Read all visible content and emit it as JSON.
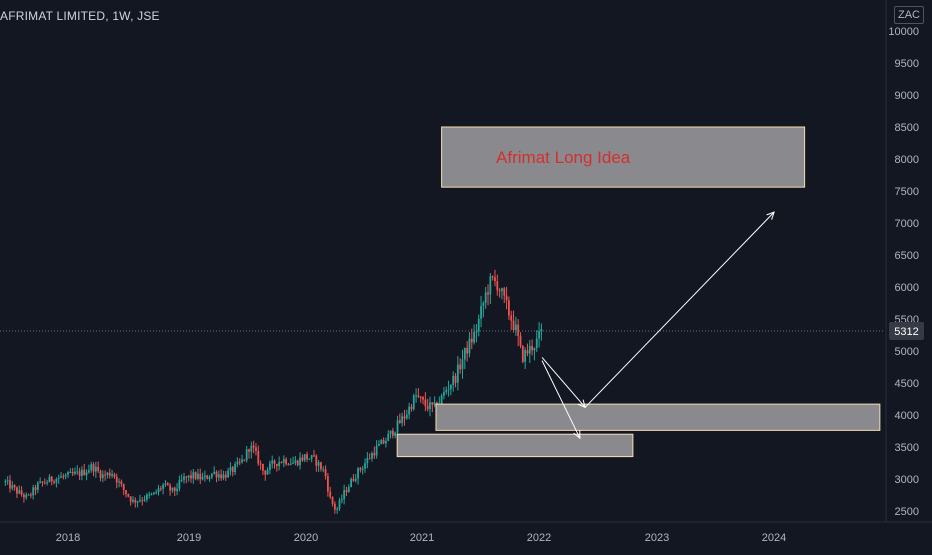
{
  "header": {
    "symbol": "AFRIMAT LIMITED",
    "interval": "1W",
    "exchange": "JSE",
    "currency": "ZAC"
  },
  "colors": {
    "background": "#131722",
    "up": "#26a69a",
    "down": "#ef5350",
    "box_fill": "#8a8a8e",
    "box_border": "#f5deb3",
    "annotation_text": "#d32f2f",
    "arrow": "#ffffff",
    "price_line": "#5d6d7e",
    "last_price_bg": "#363a45"
  },
  "chart_data": {
    "type": "candlestick",
    "title": "AFRIMAT LIMITED, 1W, JSE",
    "y_axis": {
      "ticks": [
        10000,
        9500,
        9000,
        8500,
        8000,
        7500,
        7000,
        6500,
        6000,
        5500,
        5000,
        4500,
        4000,
        3500,
        3000,
        2500
      ],
      "range": [
        2400,
        10200
      ],
      "unit": "ZAC"
    },
    "x_axis": {
      "ticks": [
        "2018",
        "2019",
        "2020",
        "2021",
        "2022",
        "2023",
        "2024"
      ],
      "range": [
        "2017-06-26",
        "2024-10-21"
      ]
    },
    "last_price": 5312,
    "price_path": [
      [
        "2017-06-26",
        2950
      ],
      [
        "2017-08-01",
        2800
      ],
      [
        "2017-09-01",
        2700
      ],
      [
        "2017-10-01",
        2900
      ],
      [
        "2017-11-15",
        3000
      ],
      [
        "2018-01-01",
        3050
      ],
      [
        "2018-02-15",
        3100
      ],
      [
        "2018-03-15",
        3200
      ],
      [
        "2018-04-15",
        3050
      ],
      [
        "2018-05-15",
        3100
      ],
      [
        "2018-06-15",
        2850
      ],
      [
        "2018-07-15",
        2650
      ],
      [
        "2018-08-15",
        2700
      ],
      [
        "2018-09-15",
        2750
      ],
      [
        "2018-10-15",
        2900
      ],
      [
        "2018-11-15",
        2800
      ],
      [
        "2018-12-15",
        3000
      ],
      [
        "2019-01-15",
        3050
      ],
      [
        "2019-02-15",
        3000
      ],
      [
        "2019-03-15",
        3100
      ],
      [
        "2019-04-15",
        3050
      ],
      [
        "2019-05-15",
        3150
      ],
      [
        "2019-06-15",
        3300
      ],
      [
        "2019-07-01",
        3500
      ],
      [
        "2019-07-15",
        3450
      ],
      [
        "2019-08-15",
        3100
      ],
      [
        "2019-09-15",
        3250
      ],
      [
        "2019-10-15",
        3300
      ],
      [
        "2019-11-15",
        3250
      ],
      [
        "2019-12-15",
        3350
      ],
      [
        "2020-01-15",
        3300
      ],
      [
        "2020-02-15",
        3100
      ],
      [
        "2020-03-01",
        2700
      ],
      [
        "2020-03-20",
        2500
      ],
      [
        "2020-04-15",
        2800
      ],
      [
        "2020-05-15",
        3050
      ],
      [
        "2020-06-15",
        3250
      ],
      [
        "2020-07-15",
        3450
      ],
      [
        "2020-08-15",
        3600
      ],
      [
        "2020-09-15",
        3800
      ],
      [
        "2020-10-15",
        4000
      ],
      [
        "2020-11-15",
        4300
      ],
      [
        "2020-12-15",
        4150
      ],
      [
        "2021-01-15",
        4100
      ],
      [
        "2021-02-15",
        4400
      ],
      [
        "2021-03-15",
        4600
      ],
      [
        "2021-04-15",
        5000
      ],
      [
        "2021-05-15",
        5300
      ],
      [
        "2021-06-15",
        5900
      ],
      [
        "2021-07-01",
        6100
      ],
      [
        "2021-07-20",
        6050
      ],
      [
        "2021-08-15",
        5700
      ],
      [
        "2021-09-15",
        5300
      ],
      [
        "2021-10-01",
        4900
      ],
      [
        "2021-10-20",
        5000
      ],
      [
        "2021-11-15",
        5150
      ],
      [
        "2021-12-01",
        5312
      ]
    ],
    "annotations": [
      {
        "type": "text_box",
        "label": "Afrimat Long Idea",
        "start": "2021-02-01",
        "end": "2024-02-01",
        "price_high": 8500,
        "price_low": 7560
      },
      {
        "type": "zone_box",
        "start": "2021-01-15",
        "end": "2024-09-15",
        "price_high": 4170,
        "price_low": 3760
      },
      {
        "type": "zone_box",
        "start": "2020-09-20",
        "end": "2022-09-01",
        "price_high": 3700,
        "price_low": 3350
      },
      {
        "type": "arrow",
        "from": [
          "2021-12-01",
          4900
        ],
        "to": [
          "2022-04-10",
          4120
        ]
      },
      {
        "type": "arrow",
        "from": [
          "2022-04-10",
          4120
        ],
        "to": [
          "2023-11-01",
          7170
        ]
      },
      {
        "type": "arrow",
        "from": [
          "2021-12-01",
          4850
        ],
        "to": [
          "2022-03-25",
          3640
        ]
      }
    ]
  }
}
